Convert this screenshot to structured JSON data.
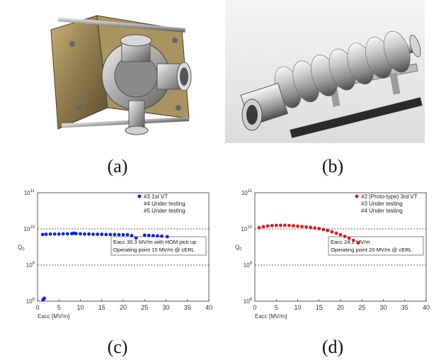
{
  "captions": {
    "a": "(a)",
    "b": "(b)",
    "c": "(c)",
    "d": "(d)"
  },
  "photos": {
    "a": "stainless steel input coupler / cavity flange assembly",
    "b": "multi-cell superconducting cavity on support stand"
  },
  "chart_data": [
    {
      "type": "scatter",
      "panel": "c",
      "ylabel": "Q",
      "ylabel_sub": "0",
      "xlabel": "Eacc [MV/m]",
      "xlim": [
        0,
        40
      ],
      "ylim_log10": [
        8,
        11
      ],
      "y_scale": "log",
      "x_ticks": [
        0,
        5,
        10,
        15,
        20,
        25,
        30,
        35,
        40
      ],
      "y_ticks": [
        {
          "base": "10",
          "exp": "8"
        },
        {
          "base": "10",
          "exp": "9"
        },
        {
          "base": "10",
          "exp": "10"
        },
        {
          "base": "10",
          "exp": "11"
        }
      ],
      "reference_lines_log10": [
        9,
        10
      ],
      "legend": {
        "placement": "top-right",
        "entries": [
          {
            "label": "#3 1st VT",
            "marker": true
          },
          {
            "label": "#4 Under testing",
            "marker": false
          },
          {
            "label": "#5 Under testing",
            "marker": false
          }
        ]
      },
      "annotation": [
        "Eacc 30.3 MV/m with HOM pick up",
        "Operating point 15 MV/m @ cERL"
      ],
      "series": [
        {
          "color": "#0b23e0",
          "x": [
            1.2,
            1.6,
            1.3,
            2,
            3,
            4,
            5,
            6,
            7,
            8,
            8.5,
            9,
            10,
            11,
            12,
            13,
            14,
            15,
            16,
            17,
            18,
            19,
            20,
            21,
            22,
            23,
            25,
            26,
            27,
            28,
            29,
            30.3
          ],
          "y": [
            7000000000.0,
            120000000.0,
            110000000.0,
            7100000000.0,
            7200000000.0,
            7200000000.0,
            7200000000.0,
            7300000000.0,
            7300000000.0,
            7400000000.0,
            7600000000.0,
            7400000000.0,
            7300000000.0,
            7200000000.0,
            7200000000.0,
            7100000000.0,
            7100000000.0,
            7100000000.0,
            7000000000.0,
            7000000000.0,
            7000000000.0,
            6900000000.0,
            6900000000.0,
            6900000000.0,
            6500000000.0,
            5600000000.0,
            6700000000.0,
            6600000000.0,
            6500000000.0,
            6400000000.0,
            6300000000.0,
            6100000000.0
          ]
        }
      ]
    },
    {
      "type": "scatter",
      "panel": "d",
      "ylabel": "Q",
      "ylabel_sub": "0",
      "xlabel": "Eacc [MV/m]",
      "xlim": [
        0,
        40
      ],
      "ylim_log10": [
        8,
        11
      ],
      "y_scale": "log",
      "x_ticks": [
        0,
        5,
        10,
        15,
        20,
        25,
        30,
        35,
        40
      ],
      "y_ticks": [
        {
          "base": "10",
          "exp": "8"
        },
        {
          "base": "10",
          "exp": "9"
        },
        {
          "base": "10",
          "exp": "10"
        },
        {
          "base": "10",
          "exp": "11"
        }
      ],
      "reference_lines_log10": [
        9,
        10
      ],
      "legend": {
        "placement": "top-right",
        "entries": [
          {
            "label": "#2 (Proto-type) 3rd VT",
            "marker": true
          },
          {
            "label": "#3 Under testing",
            "marker": false
          },
          {
            "label": "#4 Under testing",
            "marker": false
          }
        ]
      },
      "annotation": [
        "Eacc 24.1 MV/m",
        "Operating point 20 MV/m @ cERL"
      ],
      "series": [
        {
          "color": "#e8141e",
          "x": [
            1,
            2,
            3,
            4,
            5,
            6,
            7,
            8,
            9,
            10,
            11,
            12,
            13,
            14,
            15,
            16,
            17,
            18,
            19,
            20,
            21,
            22,
            23,
            24.1
          ],
          "y": [
            10800000000.0,
            11500000000.0,
            12000000000.0,
            12300000000.0,
            12500000000.0,
            12500000000.0,
            12500000000.0,
            12400000000.0,
            12200000000.0,
            11900000000.0,
            11600000000.0,
            11300000000.0,
            11000000000.0,
            10600000000.0,
            10200000000.0,
            9600000000.0,
            9000000000.0,
            8300000000.0,
            7600000000.0,
            6900000000.0,
            6200000000.0,
            5500000000.0,
            4800000000.0,
            4100000000.0
          ]
        }
      ]
    }
  ]
}
